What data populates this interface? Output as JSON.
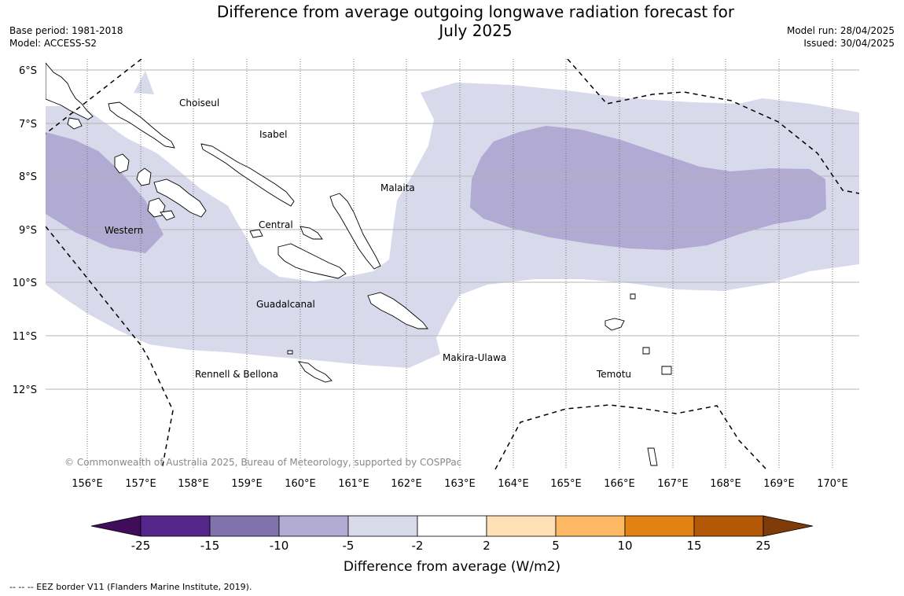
{
  "title_line1": "Difference from average outgoing longwave radiation forecast for",
  "title_line2": "July 2025",
  "base_period": "Base period: 1981-2018",
  "model": "Model: ACCESS-S2",
  "model_run": "Model run: 28/04/2025",
  "issued": "Issued: 30/04/2025",
  "lat_labels": [
    "6°S",
    "7°S",
    "8°S",
    "9°S",
    "10°S",
    "11°S",
    "12°S"
  ],
  "lon_labels": [
    "156°E",
    "157°E",
    "158°E",
    "159°E",
    "160°E",
    "161°E",
    "162°E",
    "163°E",
    "164°E",
    "165°E",
    "166°E",
    "167°E",
    "168°E",
    "169°E",
    "170°E"
  ],
  "regions": {
    "choiseul": "Choiseul",
    "isabel": "Isabel",
    "malaita": "Malaita",
    "western": "Western",
    "central": "Central",
    "guadalcanal": "Guadalcanal",
    "makira": "Makira-Ulawa",
    "rennell": "Rennell & Bellona",
    "temotu": "Temotu"
  },
  "copyright": "© Commonwealth of Australia 2025, Bureau of Meteorology, supported by COSPPac",
  "colorbar": {
    "title": "Difference from average (W/m2)",
    "ticks": [
      "-25",
      "-15",
      "-10",
      "-5",
      "-2",
      "2",
      "5",
      "10",
      "15",
      "25"
    ],
    "colors": [
      "#3f0d5a",
      "#54268a",
      "#8073ac",
      "#b1aad2",
      "#d8d9ea",
      "#ffffff",
      "#fee0b6",
      "#fdb863",
      "#e08214",
      "#b35806",
      "#7f3b08"
    ]
  },
  "footer": "--  --  -- EEZ border V11 (Flanders Marine Institute, 2019)."
}
